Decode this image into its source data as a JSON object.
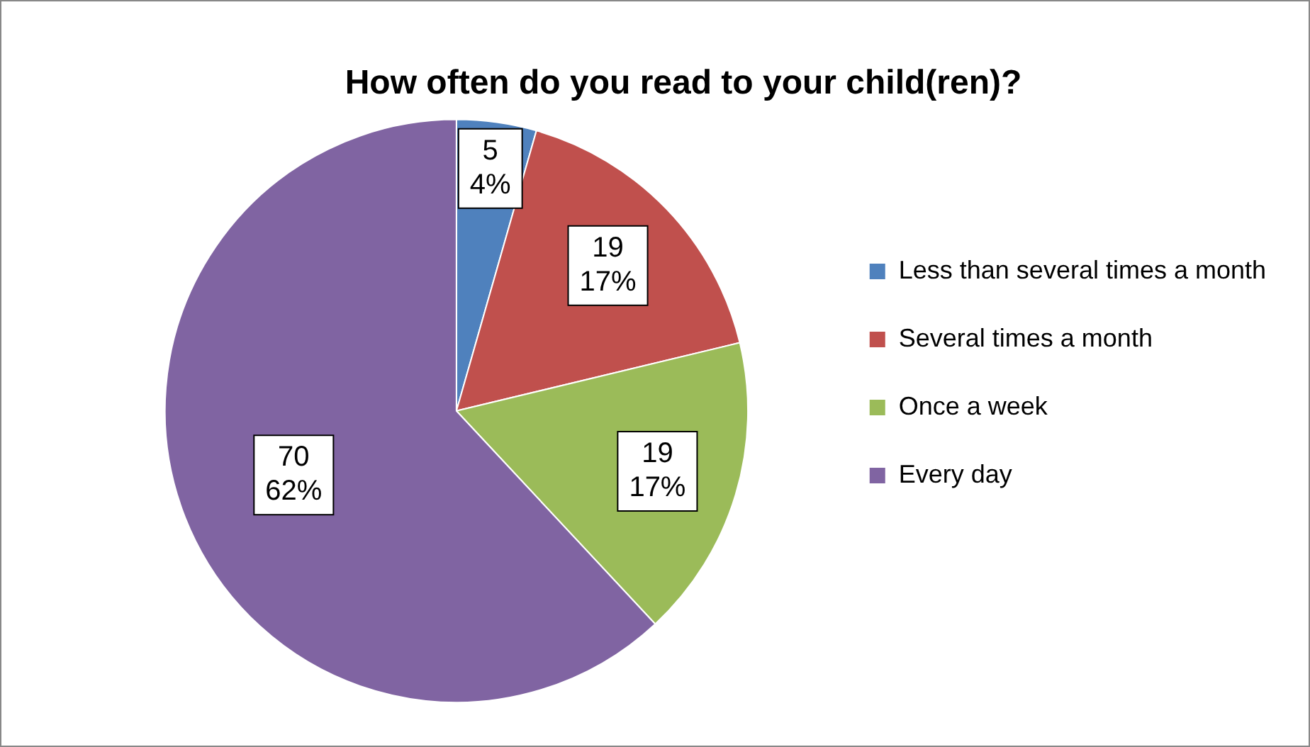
{
  "chart_data": {
    "type": "pie",
    "title": "How often do you read to your child(ren)?",
    "categories": [
      "Less than several times a month",
      "Several times a month",
      "Once a week",
      "Every day"
    ],
    "values": [
      5,
      19,
      19,
      70
    ],
    "value_labels": [
      "5\n4%",
      "19\n17%",
      "19\n17%",
      "70\n62%"
    ],
    "colors": [
      "#4f81bd",
      "#c0504d",
      "#9bbb59",
      "#8064a2"
    ],
    "legend": "right"
  }
}
